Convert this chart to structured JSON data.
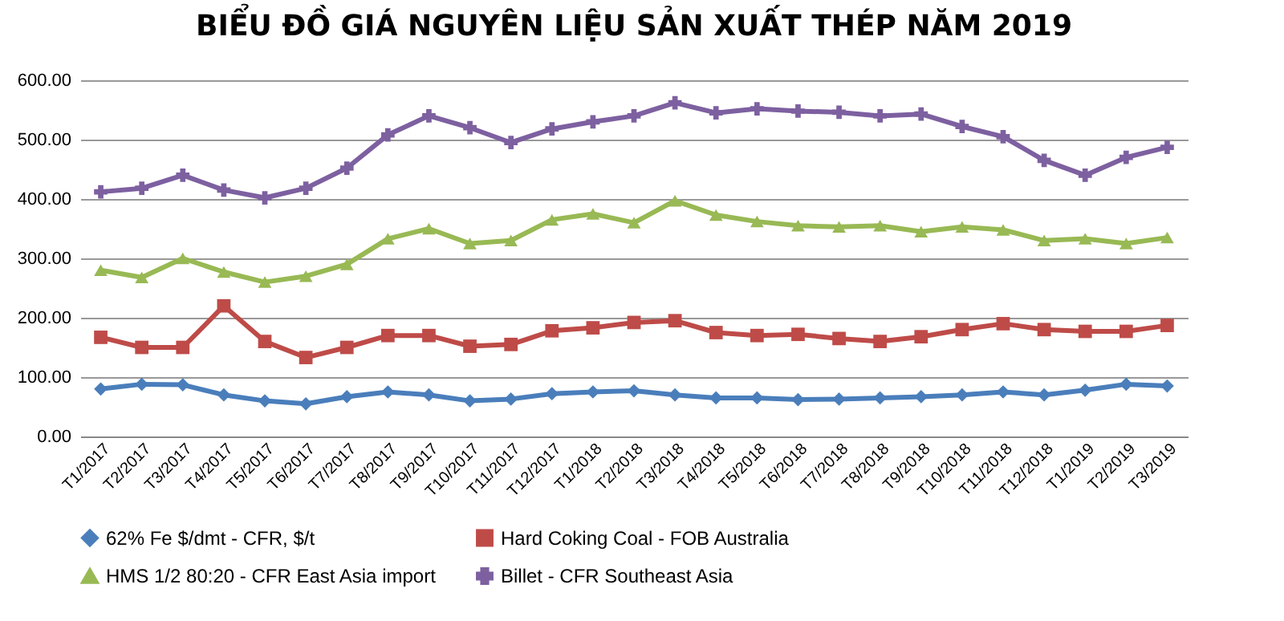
{
  "chart_data": {
    "type": "line",
    "title": "BIỂU ĐỒ GIÁ NGUYÊN LIỆU SẢN XUẤT THÉP NĂM 2019",
    "categories": [
      "T1/2017",
      "T2/2017",
      "T3/2017",
      "T4/2017",
      "T5/2017",
      "T6/2017",
      "T7/2017",
      "T8/2017",
      "T9/2017",
      "T10/2017",
      "T11/2017",
      "T12/2017",
      "T1/2018",
      "T2/2018",
      "T3/2018",
      "T4/2018",
      "T5/2018",
      "T6/2018",
      "T7/2018",
      "T8/2018",
      "T9/2018",
      "T10/2018",
      "T11/2018",
      "T12/2018",
      "T1/2019",
      "T2/2019",
      "T3/2019"
    ],
    "series": [
      {
        "name": "62% Fe $/dmt - CFR, $/t",
        "color": "#4a7ebb",
        "marker": "diamond",
        "values": [
          80,
          88,
          87,
          70,
          60,
          55,
          67,
          75,
          70,
          60,
          63,
          72,
          75,
          77,
          70,
          65,
          65,
          62,
          63,
          65,
          67,
          70,
          75,
          70,
          78,
          88,
          85
        ]
      },
      {
        "name": "Hard Coking Coal - FOB Australia",
        "color": "#be4b48",
        "marker": "square",
        "values": [
          167,
          150,
          150,
          220,
          160,
          133,
          150,
          170,
          170,
          152,
          155,
          178,
          183,
          192,
          195,
          175,
          170,
          172,
          165,
          160,
          168,
          180,
          190,
          180,
          177,
          177,
          187
        ]
      },
      {
        "name": "HMS 1/2 80:20 - CFR East Asia import",
        "color": "#98b954",
        "marker": "triangle",
        "values": [
          280,
          268,
          300,
          277,
          260,
          270,
          290,
          333,
          350,
          325,
          330,
          365,
          375,
          360,
          397,
          373,
          362,
          355,
          353,
          355,
          345,
          353,
          348,
          330,
          333,
          325,
          335
        ]
      },
      {
        "name": "Billet - CFR Southeast Asia",
        "color": "#7d60a0",
        "marker": "cross",
        "values": [
          412,
          418,
          440,
          415,
          402,
          418,
          452,
          508,
          540,
          520,
          495,
          518,
          530,
          540,
          562,
          545,
          552,
          548,
          546,
          540,
          543,
          522,
          505,
          465,
          440,
          470,
          487
        ]
      }
    ],
    "ylim": [
      0,
      600
    ],
    "yticks": [
      {
        "value": 0,
        "label": "0.00"
      },
      {
        "value": 100,
        "label": "100.00"
      },
      {
        "value": 200,
        "label": "200.00"
      },
      {
        "value": 300,
        "label": "300.00"
      },
      {
        "value": 400,
        "label": "400.00"
      },
      {
        "value": 500,
        "label": "500.00"
      },
      {
        "value": 600,
        "label": "600.00"
      }
    ],
    "grid": "y",
    "legend": "bottom",
    "line_style": "solid"
  }
}
